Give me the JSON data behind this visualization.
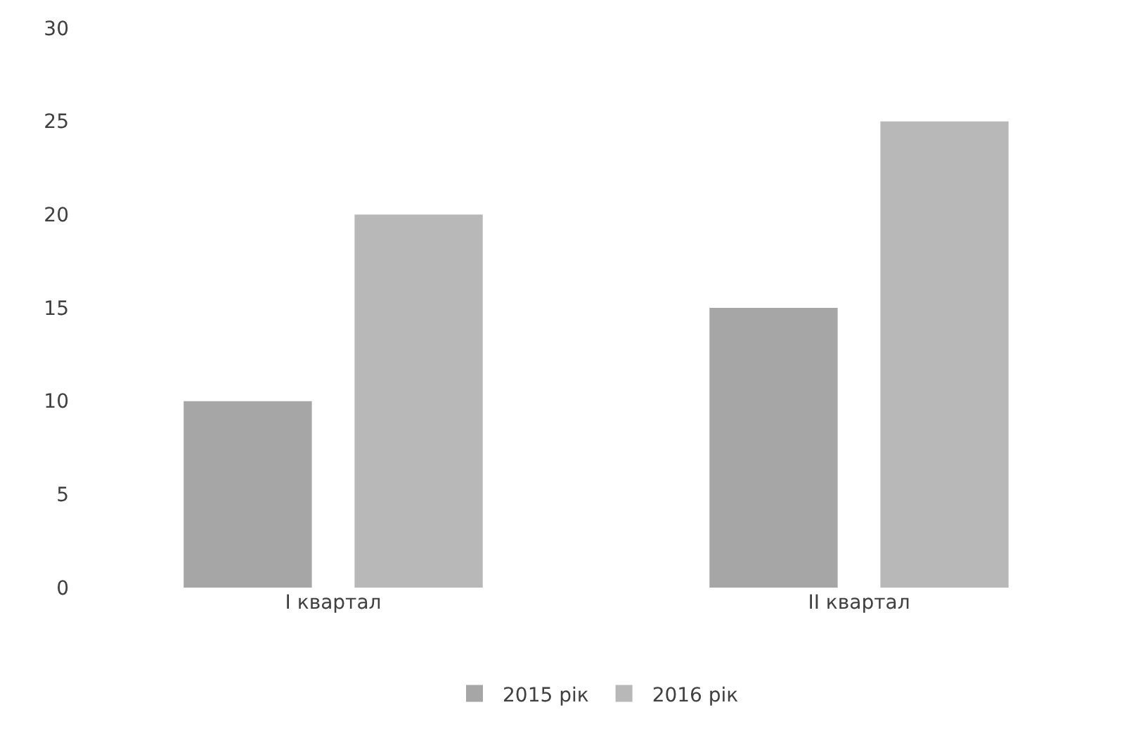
{
  "chart_data": {
    "type": "bar",
    "categories": [
      "I квартал",
      "II квартал"
    ],
    "series": [
      {
        "name": "2015 рік",
        "color": "#a6a6a6",
        "values": [
          10,
          15
        ]
      },
      {
        "name": "2016 рік",
        "color": "#b8b8b8",
        "values": [
          20,
          25
        ]
      }
    ],
    "ylim": [
      0,
      30
    ],
    "yticks": [
      0,
      5,
      10,
      15,
      20,
      25,
      30
    ],
    "grid": false,
    "legend": "bottom"
  }
}
